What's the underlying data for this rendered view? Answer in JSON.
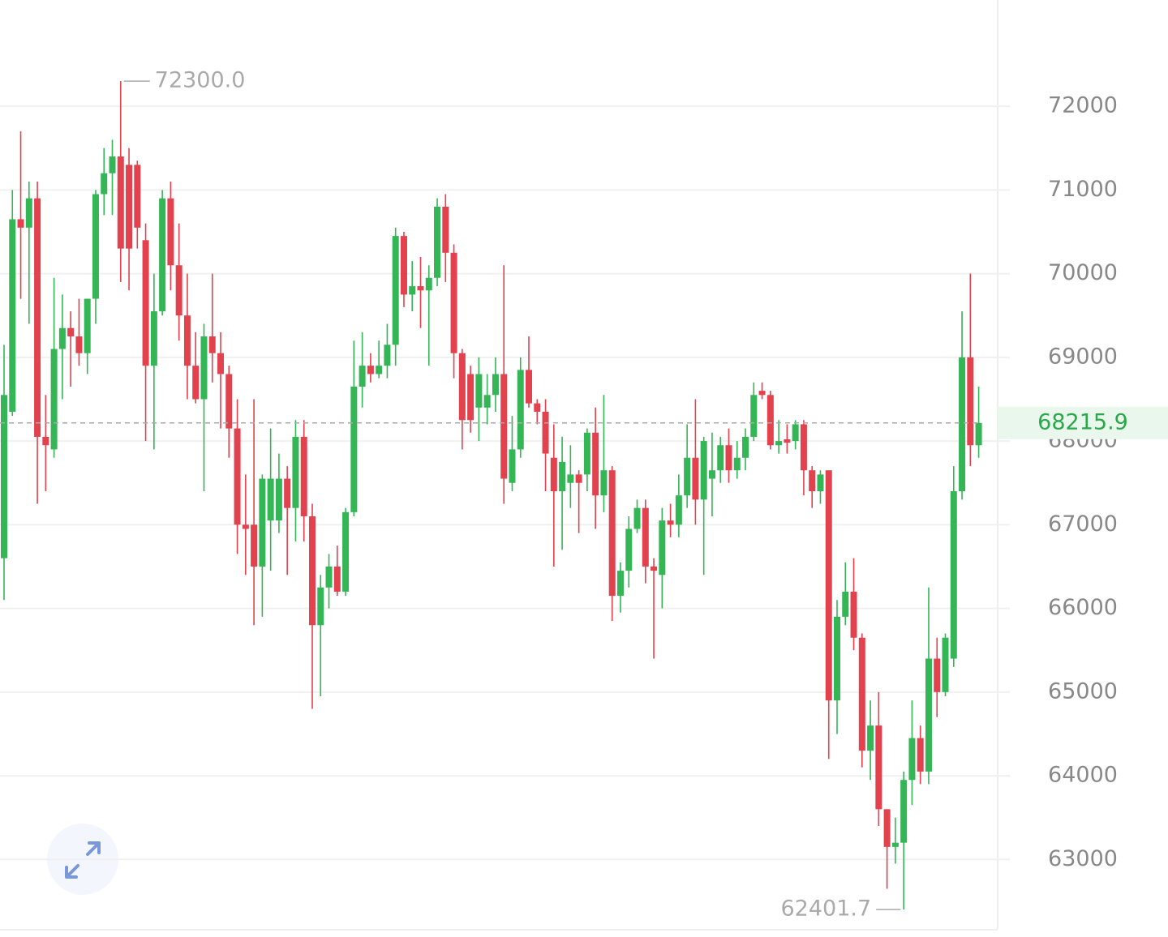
{
  "chart_data": {
    "type": "candlestick",
    "up_color": "#34b556",
    "down_color": "#e2414e",
    "open": [
      66600,
      68350,
      70650,
      70550,
      70900,
      68050,
      67900,
      69100,
      69350,
      69250,
      69050,
      69700,
      70950,
      71200,
      71400,
      71300,
      71300,
      70400,
      68900,
      69550,
      70900,
      70100,
      69500,
      68900,
      68500,
      69250,
      69050,
      68800,
      68150,
      67000,
      67000,
      66500,
      67050,
      67050,
      67550,
      67200,
      68050,
      67100,
      65800,
      66250,
      66500,
      66200,
      67150,
      68650,
      68900,
      68800,
      68900,
      69150,
      70450,
      69750,
      69850,
      69800,
      69950,
      70800,
      70250,
      69050,
      68800,
      68400,
      68400,
      68550,
      68800,
      67500,
      67900,
      68850,
      68450,
      68350,
      67800,
      67400,
      67500,
      67600,
      67600,
      68100,
      67350,
      67650,
      66150,
      66450,
      66950,
      67200,
      66500,
      66400,
      67050,
      67000,
      67350,
      67800,
      67300,
      67550,
      67650,
      67950,
      67650,
      67800,
      68050,
      68600,
      68550,
      67950,
      68020,
      68000,
      68200,
      67650,
      67400,
      67650,
      64900,
      65900,
      66200,
      65650,
      64300,
      64600,
      63600,
      63150,
      63200,
      63950,
      64450,
      64050,
      65400,
      65000,
      65400,
      67400,
      69000,
      67950
    ],
    "high": [
      69150,
      71000,
      71700,
      71100,
      71100,
      68550,
      69950,
      69750,
      69550,
      69700,
      69700,
      71000,
      71500,
      71600,
      72300,
      71500,
      71350,
      70600,
      70000,
      71000,
      71100,
      70600,
      70000,
      69300,
      69400,
      70000,
      69300,
      68900,
      68500,
      67600,
      68500,
      67600,
      68150,
      67850,
      67700,
      68250,
      68250,
      67250,
      66400,
      66650,
      66750,
      67200,
      69200,
      69300,
      69050,
      69200,
      69400,
      70550,
      70500,
      70150,
      70200,
      70100,
      70900,
      70950,
      70350,
      69100,
      68900,
      69000,
      68800,
      69000,
      70100,
      68300,
      69000,
      69250,
      68500,
      68500,
      68200,
      68050,
      67950,
      67650,
      68150,
      68400,
      68550,
      67700,
      66550,
      67100,
      67300,
      67300,
      66600,
      67200,
      67250,
      67600,
      68200,
      68500,
      68050,
      68100,
      68050,
      68150,
      68000,
      68150,
      68700,
      68700,
      68600,
      68250,
      68200,
      68250,
      68250,
      67700,
      67650,
      67650,
      66100,
      66550,
      66600,
      65700,
      64900,
      65000,
      63600,
      63500,
      64050,
      64900,
      64600,
      66250,
      65650,
      65700,
      67700,
      69550,
      70000,
      68650
    ],
    "low": [
      66100,
      68300,
      69700,
      69400,
      67250,
      67400,
      67800,
      68500,
      68650,
      68900,
      68800,
      69400,
      70700,
      70700,
      69900,
      69800,
      70300,
      68000,
      67900,
      69500,
      69800,
      69200,
      68500,
      68450,
      67400,
      68700,
      68150,
      67800,
      66650,
      66400,
      65800,
      65900,
      66450,
      66900,
      66400,
      66800,
      66800,
      64800,
      64950,
      66000,
      66150,
      66150,
      67100,
      68400,
      68700,
      68750,
      68750,
      68900,
      69600,
      69550,
      69350,
      68900,
      69850,
      69900,
      68750,
      67900,
      68100,
      68000,
      68200,
      68350,
      67250,
      67400,
      67800,
      68400,
      68200,
      67400,
      66500,
      66700,
      67200,
      66900,
      67400,
      66950,
      67150,
      65850,
      65950,
      66250,
      66900,
      66300,
      65400,
      66000,
      66850,
      66850,
      67200,
      67000,
      66400,
      67100,
      67500,
      67500,
      67550,
      67650,
      68000,
      68500,
      67900,
      67850,
      67850,
      67900,
      67350,
      67200,
      67250,
      64200,
      64500,
      65800,
      65500,
      64100,
      63950,
      63400,
      62650,
      62950,
      62401.7,
      63650,
      63900,
      63900,
      64700,
      64950,
      65300,
      67300,
      67700,
      67800
    ],
    "close": [
      68550,
      70650,
      70550,
      70900,
      68050,
      67950,
      69100,
      69350,
      69250,
      69050,
      69700,
      70950,
      71200,
      71400,
      70300,
      70300,
      70550,
      68900,
      69550,
      70900,
      70100,
      69500,
      68900,
      68500,
      69250,
      69050,
      68800,
      68150,
      67000,
      66950,
      66500,
      67550,
      67550,
      67550,
      67200,
      68050,
      67100,
      65800,
      66250,
      66500,
      66200,
      67150,
      68650,
      68900,
      68800,
      68900,
      69150,
      70450,
      69750,
      69850,
      69800,
      69950,
      70800,
      70250,
      69050,
      68250,
      68250,
      68800,
      68550,
      68800,
      67550,
      67900,
      68850,
      68450,
      68350,
      67850,
      67400,
      67750,
      67600,
      67500,
      68100,
      67350,
      67650,
      66150,
      66450,
      66950,
      67200,
      66500,
      66450,
      67050,
      67000,
      67350,
      67800,
      67300,
      68000,
      67650,
      67950,
      67650,
      67800,
      68050,
      68550,
      68550,
      67950,
      68000,
      67980,
      68200,
      67650,
      67400,
      67600,
      64900,
      65900,
      66200,
      65650,
      64300,
      64600,
      63600,
      63150,
      63200,
      63950,
      64450,
      64050,
      65400,
      65000,
      65650,
      67400,
      69000,
      67950,
      68215.9
    ],
    "ylim": [
      62170,
      73270
    ],
    "yticks": [
      63000,
      64000,
      65000,
      66000,
      67000,
      68000,
      69000,
      70000,
      71000,
      72000
    ],
    "grid": true,
    "max_marker": {
      "value": 72300,
      "label": "72300.0"
    },
    "min_marker": {
      "value": 62401.7,
      "label": "62401.7"
    },
    "last_price": {
      "value": 68215.9,
      "label": "68215.9",
      "color": "#2aa84a"
    }
  }
}
